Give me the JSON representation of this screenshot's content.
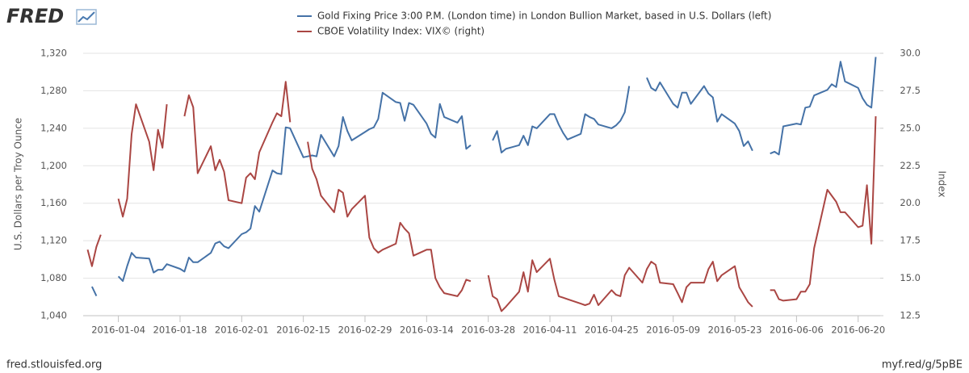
{
  "logo": "FRED",
  "source": "fred.stlouisfed.org",
  "short_link": "myf.red/g/5pBE",
  "chart_data": {
    "type": "line",
    "ylabel": "U.S. Dollars per Troy Ounce",
    "y2label": "Index",
    "grid": true,
    "legend": "top",
    "xlim": [
      "2015-12-27",
      "2016-06-25"
    ],
    "xticks": [
      "2016-01-04",
      "2016-01-18",
      "2016-02-01",
      "2016-02-15",
      "2016-02-29",
      "2016-03-14",
      "2016-03-28",
      "2016-04-11",
      "2016-04-25",
      "2016-05-09",
      "2016-05-23",
      "2016-06-06",
      "2016-06-20"
    ],
    "ylim": [
      1040,
      1320
    ],
    "yticks": [
      {
        "value": 1040,
        "label": "1,040"
      },
      {
        "value": 1080,
        "label": "1,080"
      },
      {
        "value": 1120,
        "label": "1,120"
      },
      {
        "value": 1160,
        "label": "1,160"
      },
      {
        "value": 1200,
        "label": "1,200"
      },
      {
        "value": 1240,
        "label": "1,240"
      },
      {
        "value": 1280,
        "label": "1,280"
      },
      {
        "value": 1320,
        "label": "1,320"
      }
    ],
    "y2lim": [
      12.5,
      30
    ],
    "y2ticks": [
      12.5,
      {
        "value": 15,
        "label": "15.0"
      },
      17.5,
      {
        "value": 20,
        "label": "20.0"
      },
      22.5,
      {
        "value": 25,
        "label": "25.0"
      },
      27.5,
      {
        "value": 30,
        "label": "30.0"
      }
    ],
    "x": [
      "2015-12-28",
      "2015-12-29",
      "2015-12-30",
      "2015-12-31",
      "2016-01-01",
      "2016-01-04",
      "2016-01-05",
      "2016-01-06",
      "2016-01-07",
      "2016-01-08",
      "2016-01-11",
      "2016-01-12",
      "2016-01-13",
      "2016-01-14",
      "2016-01-15",
      "2016-01-18",
      "2016-01-19",
      "2016-01-20",
      "2016-01-21",
      "2016-01-22",
      "2016-01-25",
      "2016-01-26",
      "2016-01-27",
      "2016-01-28",
      "2016-01-29",
      "2016-02-01",
      "2016-02-02",
      "2016-02-03",
      "2016-02-04",
      "2016-02-05",
      "2016-02-08",
      "2016-02-09",
      "2016-02-10",
      "2016-02-11",
      "2016-02-12",
      "2016-02-15",
      "2016-02-16",
      "2016-02-17",
      "2016-02-18",
      "2016-02-19",
      "2016-02-22",
      "2016-02-23",
      "2016-02-24",
      "2016-02-25",
      "2016-02-26",
      "2016-02-29",
      "2016-03-01",
      "2016-03-02",
      "2016-03-03",
      "2016-03-04",
      "2016-03-07",
      "2016-03-08",
      "2016-03-09",
      "2016-03-10",
      "2016-03-11",
      "2016-03-14",
      "2016-03-15",
      "2016-03-16",
      "2016-03-17",
      "2016-03-18",
      "2016-03-21",
      "2016-03-22",
      "2016-03-23",
      "2016-03-24",
      "2016-03-25",
      "2016-03-28",
      "2016-03-29",
      "2016-03-30",
      "2016-03-31",
      "2016-04-01",
      "2016-04-04",
      "2016-04-05",
      "2016-04-06",
      "2016-04-07",
      "2016-04-08",
      "2016-04-11",
      "2016-04-12",
      "2016-04-13",
      "2016-04-14",
      "2016-04-15",
      "2016-04-18",
      "2016-04-19",
      "2016-04-20",
      "2016-04-21",
      "2016-04-22",
      "2016-04-25",
      "2016-04-26",
      "2016-04-27",
      "2016-04-28",
      "2016-04-29",
      "2016-05-02",
      "2016-05-03",
      "2016-05-04",
      "2016-05-05",
      "2016-05-06",
      "2016-05-09",
      "2016-05-10",
      "2016-05-11",
      "2016-05-12",
      "2016-05-13",
      "2016-05-16",
      "2016-05-17",
      "2016-05-18",
      "2016-05-19",
      "2016-05-20",
      "2016-05-23",
      "2016-05-24",
      "2016-05-25",
      "2016-05-26",
      "2016-05-27",
      "2016-05-30",
      "2016-05-31",
      "2016-06-01",
      "2016-06-02",
      "2016-06-03",
      "2016-06-06",
      "2016-06-07",
      "2016-06-08",
      "2016-06-09",
      "2016-06-10",
      "2016-06-13",
      "2016-06-14",
      "2016-06-15",
      "2016-06-16",
      "2016-06-17",
      "2016-06-20",
      "2016-06-21",
      "2016-06-22",
      "2016-06-23",
      "2016-06-24"
    ],
    "series": [
      {
        "name": "Gold Fixing Price 3:00 P.M. (London time) in London Bullion Market, based in U.S. Dollars (left)",
        "color": "#4572a7",
        "values": [
          null,
          1071,
          1061,
          null,
          null,
          1082,
          1077,
          1093,
          1107,
          1102,
          1101,
          1086,
          1089,
          1089,
          1095,
          1090,
          1087,
          1102,
          1097,
          1097,
          1107,
          1117,
          1119,
          1114,
          1112,
          1127,
          1129,
          1133,
          1157,
          1151,
          1195,
          1192,
          1191,
          1241,
          1240,
          1209,
          1210,
          1211,
          1210,
          1233,
          1210,
          1221,
          1252,
          1237,
          1227,
          1236,
          1239,
          1241,
          1250,
          1278,
          1268,
          1267,
          1248,
          1267,
          1265,
          1245,
          1234,
          1230,
          1266,
          1252,
          1246,
          1253,
          1218,
          1222,
          null,
          null,
          1227,
          1237,
          1214,
          1218,
          1222,
          1232,
          1222,
          1242,
          1240,
          1255,
          1255,
          1244,
          1235,
          1228,
          1234,
          1255,
          1252,
          1250,
          1244,
          1240,
          1243,
          1248,
          1257,
          1285,
          null,
          1294,
          1283,
          1280,
          1289,
          1266,
          1262,
          1278,
          1278,
          1266,
          1285,
          1277,
          1273,
          1247,
          1255,
          1245,
          1237,
          1221,
          1226,
          1216,
          null,
          1213,
          1215,
          1212,
          1242,
          1245,
          1244,
          1262,
          1263,
          1275,
          1281,
          1287,
          1284,
          1311,
          1290,
          1283,
          1272,
          1265,
          1262,
          1316
        ]
      },
      {
        "name": "CBOE Volatility Index: VIX© (right)",
        "color": "#aa4643",
        "axis": "y2",
        "values": [
          16.9,
          15.8,
          17.1,
          17.9,
          null,
          20.3,
          19.1,
          20.3,
          24.6,
          26.6,
          24.1,
          22.2,
          24.9,
          23.7,
          26.6,
          null,
          25.8,
          27.2,
          26.4,
          22.0,
          23.8,
          22.2,
          22.9,
          22.1,
          20.2,
          20.0,
          21.7,
          22.0,
          21.6,
          23.4,
          25.4,
          26.0,
          25.8,
          28.1,
          25.4,
          null,
          24.1,
          22.3,
          21.6,
          20.5,
          19.4,
          20.9,
          20.7,
          19.1,
          19.6,
          20.5,
          17.7,
          17.0,
          16.7,
          16.9,
          17.3,
          18.7,
          18.3,
          18.0,
          16.5,
          16.9,
          16.9,
          15.0,
          14.4,
          14.0,
          13.8,
          14.2,
          14.9,
          14.8,
          null,
          15.2,
          13.8,
          13.6,
          12.8,
          13.1,
          14.1,
          15.4,
          14.1,
          16.2,
          15.4,
          16.3,
          14.9,
          13.8,
          13.7,
          13.6,
          13.3,
          13.2,
          13.3,
          13.9,
          13.2,
          14.2,
          13.9,
          13.8,
          15.2,
          15.7,
          14.7,
          15.6,
          16.1,
          15.9,
          14.7,
          14.6,
          14.0,
          13.4,
          14.4,
          14.7,
          14.7,
          15.6,
          16.1,
          14.8,
          15.2,
          15.8,
          14.4,
          13.9,
          13.4,
          13.1,
          null,
          14.2,
          14.2,
          13.6,
          13.5,
          13.6,
          14.1,
          14.1,
          14.6,
          17.0,
          20.9,
          20.5,
          20.1,
          19.4,
          19.4,
          18.4,
          18.5,
          21.2,
          17.3,
          25.8
        ]
      }
    ]
  }
}
